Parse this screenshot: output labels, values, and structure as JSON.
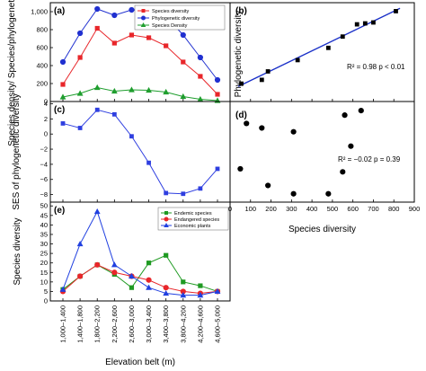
{
  "chart_data": [
    {
      "panel": "(a)",
      "type": "line",
      "categories": [
        "1,000–1,400",
        "1,400–1,800",
        "1,800–2,200",
        "2,200–2,600",
        "2,600–3,000",
        "3,000–3,400",
        "3,400–3,800",
        "3,800–4,200",
        "4,200–4,600",
        "4,600–5,000"
      ],
      "ylabel": "Species density/ Species/phylogenetic diversity",
      "ylim": [
        0,
        1100
      ],
      "yticks": [
        "0",
        "200",
        "400",
        "600",
        "800",
        "1,000"
      ],
      "series": [
        {
          "name": "Species diversity",
          "color": "#e8262a",
          "marker": "square",
          "values": [
            190,
            490,
            815,
            650,
            740,
            710,
            620,
            440,
            280,
            80
          ]
        },
        {
          "name": "Phylogenetic diversity",
          "color": "#2030d0",
          "marker": "circle",
          "values": [
            440,
            760,
            1030,
            960,
            1020,
            1010,
            950,
            740,
            490,
            240
          ]
        },
        {
          "name": "Species Density",
          "color": "#1f9e2e",
          "marker": "triangle",
          "values": [
            50,
            90,
            155,
            115,
            130,
            125,
            105,
            55,
            25,
            10
          ]
        }
      ]
    },
    {
      "panel": "(b)",
      "type": "scatter",
      "ylabel": "Phylogenetic diversity",
      "xlim": [
        0,
        900
      ],
      "ylim": [
        50,
        1100
      ],
      "annotation": "R² = 0.98  p < 0.01",
      "points": [
        {
          "x": 55,
          "y": 240
        },
        {
          "x": 155,
          "y": 280
        },
        {
          "x": 185,
          "y": 370
        },
        {
          "x": 330,
          "y": 490
        },
        {
          "x": 480,
          "y": 620
        },
        {
          "x": 550,
          "y": 740
        },
        {
          "x": 620,
          "y": 870
        },
        {
          "x": 660,
          "y": 880
        },
        {
          "x": 700,
          "y": 890
        },
        {
          "x": 810,
          "y": 1010
        }
      ],
      "fit": {
        "x": [
          40,
          830
        ],
        "y": [
          210,
          1040
        ],
        "color": "#1a30c8"
      }
    },
    {
      "panel": "(c)",
      "type": "line",
      "categories": [
        "1,000–1,400",
        "1,400–1,800",
        "1,800–2,200",
        "2,200–2,600",
        "2,600–3,000",
        "3,000–3,400",
        "3,400–3,800",
        "3,800–4,200",
        "4,200–4,600",
        "4,600–5,000"
      ],
      "ylabel": "SES of phylogenetic diversity",
      "ylim": [
        -9,
        4.3
      ],
      "yticks": [
        "−8",
        "−6",
        "−4",
        "−2",
        "0",
        "2",
        "4"
      ],
      "series": [
        {
          "name": "SES of phylogenetic diversity",
          "color": "#2f3fe0",
          "marker": "square",
          "values": [
            1.4,
            0.8,
            3.2,
            2.6,
            -0.3,
            -3.8,
            -7.8,
            -7.9,
            -7.2,
            -4.6
          ]
        }
      ]
    },
    {
      "panel": "(d)",
      "type": "scatter",
      "xlabel": "Species diversity",
      "xlim": [
        0,
        900
      ],
      "ylim": [
        -9,
        4.3
      ],
      "xticks": [
        "0",
        "100",
        "200",
        "300",
        "400",
        "500",
        "600",
        "700",
        "800",
        "900"
      ],
      "annotation": "R² = −0.02  p = 0.39",
      "points": [
        {
          "x": 50,
          "y": -4.6
        },
        {
          "x": 80,
          "y": 1.4
        },
        {
          "x": 155,
          "y": 0.8
        },
        {
          "x": 185,
          "y": -6.8
        },
        {
          "x": 310,
          "y": -7.9
        },
        {
          "x": 310,
          "y": 0.3
        },
        {
          "x": 480,
          "y": -7.9
        },
        {
          "x": 550,
          "y": -5.0
        },
        {
          "x": 560,
          "y": 2.5
        },
        {
          "x": 590,
          "y": -1.6
        },
        {
          "x": 640,
          "y": 3.1
        }
      ]
    },
    {
      "panel": "(e)",
      "type": "line",
      "categories": [
        "1,000–1,400",
        "1,400–1,800",
        "1,800–2,200",
        "2,200–2,600",
        "2,600–3,000",
        "3,000–3,400",
        "3,400–3,800",
        "3,800–4,200",
        "4,200–4,600",
        "4,600–5,000"
      ],
      "ylabel": "Species diversity",
      "xlabel": "Elevation belt (m)",
      "ylim": [
        0,
        52
      ],
      "yticks": [
        "0",
        "5",
        "10",
        "15",
        "20",
        "25",
        "30",
        "35",
        "40",
        "45",
        "50"
      ],
      "series": [
        {
          "name": "Endemic species",
          "color": "#1f9a22",
          "marker": "square",
          "values": [
            6,
            13,
            19,
            14,
            7,
            20,
            24,
            10,
            8,
            5
          ]
        },
        {
          "name": "Endangered species",
          "color": "#e8262a",
          "marker": "circle",
          "values": [
            5,
            13,
            19,
            15,
            13,
            11,
            7,
            5,
            4,
            5
          ]
        },
        {
          "name": "Economic plants",
          "color": "#2040e0",
          "marker": "triangle",
          "values": [
            6,
            30,
            47,
            19,
            13,
            7,
            4,
            3,
            3,
            5
          ]
        }
      ]
    }
  ]
}
